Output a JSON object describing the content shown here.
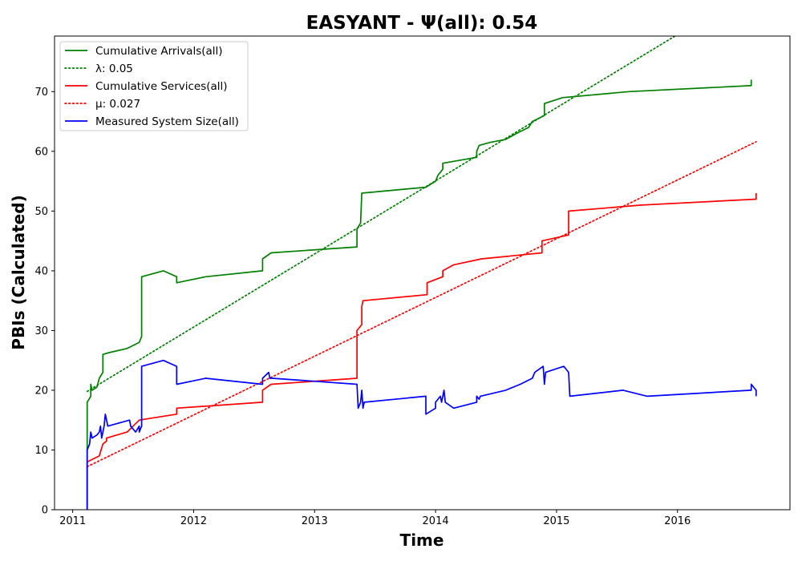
{
  "chart_data": {
    "type": "line",
    "title": "EASYANT -  Ψ(all): 0.54",
    "xlabel": "Time",
    "ylabel": "PBIs (Calculated)",
    "xlim": [
      2010.85,
      2016.93
    ],
    "ylim": [
      0,
      79.3
    ],
    "x_ticks": [
      2011,
      2012,
      2013,
      2014,
      2015,
      2016
    ],
    "x_tick_labels": [
      "2011",
      "2012",
      "2013",
      "2014",
      "2015",
      "2016"
    ],
    "y_ticks": [
      0,
      10,
      20,
      30,
      40,
      50,
      60,
      70
    ],
    "y_tick_labels": [
      "0",
      "10",
      "20",
      "30",
      "40",
      "50",
      "60",
      "70"
    ],
    "grid": false,
    "legend_position": "top-left",
    "series": [
      {
        "name": "Cumulative Arrivals(all)",
        "style": "solid",
        "color": "#008000",
        "points": [
          [
            2011.12,
            0
          ],
          [
            2011.12,
            18
          ],
          [
            2011.15,
            19
          ],
          [
            2011.15,
            21
          ],
          [
            2011.16,
            20
          ],
          [
            2011.2,
            20.5
          ],
          [
            2011.22,
            22
          ],
          [
            2011.25,
            23
          ],
          [
            2011.25,
            26
          ],
          [
            2011.3,
            26.3
          ],
          [
            2011.45,
            27
          ],
          [
            2011.55,
            28
          ],
          [
            2011.57,
            29
          ],
          [
            2011.57,
            39
          ],
          [
            2011.75,
            40
          ],
          [
            2011.86,
            39
          ],
          [
            2011.86,
            38
          ],
          [
            2012.1,
            39
          ],
          [
            2012.57,
            40
          ],
          [
            2012.57,
            42
          ],
          [
            2012.64,
            43
          ],
          [
            2013.35,
            44
          ],
          [
            2013.35,
            47
          ],
          [
            2013.38,
            48
          ],
          [
            2013.39,
            53
          ],
          [
            2013.92,
            54
          ],
          [
            2014.0,
            55
          ],
          [
            2014.02,
            56
          ],
          [
            2014.06,
            57
          ],
          [
            2014.06,
            58
          ],
          [
            2014.34,
            59
          ],
          [
            2014.34,
            60
          ],
          [
            2014.36,
            61
          ],
          [
            2014.45,
            61.5
          ],
          [
            2014.58,
            62
          ],
          [
            2014.67,
            63
          ],
          [
            2014.77,
            64
          ],
          [
            2014.8,
            65
          ],
          [
            2014.9,
            66
          ],
          [
            2014.9,
            68
          ],
          [
            2015.05,
            69
          ],
          [
            2015.6,
            70
          ],
          [
            2016.6,
            71
          ],
          [
            2016.61,
            71
          ],
          [
            2016.61,
            72
          ]
        ]
      },
      {
        "name": "λ: 0.05",
        "style": "dotted",
        "color": "#008000",
        "points": [
          [
            2011.12,
            19.8
          ],
          [
            2015.98,
            79.3
          ]
        ]
      },
      {
        "name": "Cumulative Services(all)",
        "style": "solid",
        "color": "#ff0000",
        "points": [
          [
            2011.12,
            0
          ],
          [
            2011.12,
            8
          ],
          [
            2011.22,
            9
          ],
          [
            2011.25,
            11
          ],
          [
            2011.28,
            11.5
          ],
          [
            2011.28,
            12
          ],
          [
            2011.45,
            13
          ],
          [
            2011.5,
            14
          ],
          [
            2011.55,
            15
          ],
          [
            2011.86,
            16
          ],
          [
            2011.86,
            17
          ],
          [
            2012.57,
            18
          ],
          [
            2012.57,
            20
          ],
          [
            2012.64,
            21
          ],
          [
            2013.35,
            22
          ],
          [
            2013.35,
            30
          ],
          [
            2013.39,
            31
          ],
          [
            2013.39,
            34
          ],
          [
            2013.4,
            35
          ],
          [
            2013.93,
            36
          ],
          [
            2013.93,
            38
          ],
          [
            2014.06,
            39
          ],
          [
            2014.06,
            40
          ],
          [
            2014.15,
            41
          ],
          [
            2014.38,
            42
          ],
          [
            2014.88,
            43
          ],
          [
            2014.88,
            45
          ],
          [
            2015.1,
            46
          ],
          [
            2015.1,
            50
          ],
          [
            2015.7,
            51
          ],
          [
            2016.65,
            52
          ],
          [
            2016.65,
            53
          ]
        ]
      },
      {
        "name": "μ: 0.027",
        "style": "dotted",
        "color": "#ff0000",
        "points": [
          [
            2011.12,
            7.2
          ],
          [
            2016.65,
            61.6
          ]
        ]
      },
      {
        "name": "Measured System Size(all)",
        "style": "solid",
        "color": "#0000ff",
        "points": [
          [
            2011.12,
            0
          ],
          [
            2011.12,
            10
          ],
          [
            2011.14,
            11
          ],
          [
            2011.15,
            13
          ],
          [
            2011.16,
            12
          ],
          [
            2011.2,
            12.5
          ],
          [
            2011.22,
            13
          ],
          [
            2011.23,
            14
          ],
          [
            2011.24,
            12
          ],
          [
            2011.26,
            14
          ],
          [
            2011.27,
            16
          ],
          [
            2011.29,
            14
          ],
          [
            2011.47,
            15
          ],
          [
            2011.48,
            14
          ],
          [
            2011.52,
            13
          ],
          [
            2011.55,
            14
          ],
          [
            2011.55,
            13
          ],
          [
            2011.57,
            14
          ],
          [
            2011.57,
            24
          ],
          [
            2011.75,
            25
          ],
          [
            2011.86,
            24
          ],
          [
            2011.86,
            21
          ],
          [
            2012.1,
            22
          ],
          [
            2012.57,
            21
          ],
          [
            2012.57,
            22
          ],
          [
            2012.62,
            23
          ],
          [
            2012.63,
            22
          ],
          [
            2012.65,
            22
          ],
          [
            2013.35,
            21
          ],
          [
            2013.36,
            17
          ],
          [
            2013.38,
            18
          ],
          [
            2013.39,
            20
          ],
          [
            2013.4,
            17
          ],
          [
            2013.41,
            18
          ],
          [
            2013.92,
            19
          ],
          [
            2013.92,
            16
          ],
          [
            2014.0,
            17
          ],
          [
            2014.0,
            18
          ],
          [
            2014.04,
            19
          ],
          [
            2014.05,
            18
          ],
          [
            2014.07,
            20
          ],
          [
            2014.08,
            18
          ],
          [
            2014.15,
            17
          ],
          [
            2014.34,
            18
          ],
          [
            2014.34,
            19
          ],
          [
            2014.36,
            18.5
          ],
          [
            2014.37,
            19
          ],
          [
            2014.58,
            20
          ],
          [
            2014.7,
            21
          ],
          [
            2014.8,
            22
          ],
          [
            2014.82,
            23
          ],
          [
            2014.89,
            24
          ],
          [
            2014.9,
            21
          ],
          [
            2014.91,
            23
          ],
          [
            2015.06,
            24
          ],
          [
            2015.1,
            23
          ],
          [
            2015.11,
            19
          ],
          [
            2015.55,
            20
          ],
          [
            2015.75,
            19
          ],
          [
            2016.61,
            20
          ],
          [
            2016.61,
            21
          ],
          [
            2016.65,
            20
          ],
          [
            2016.65,
            19
          ]
        ]
      }
    ]
  }
}
